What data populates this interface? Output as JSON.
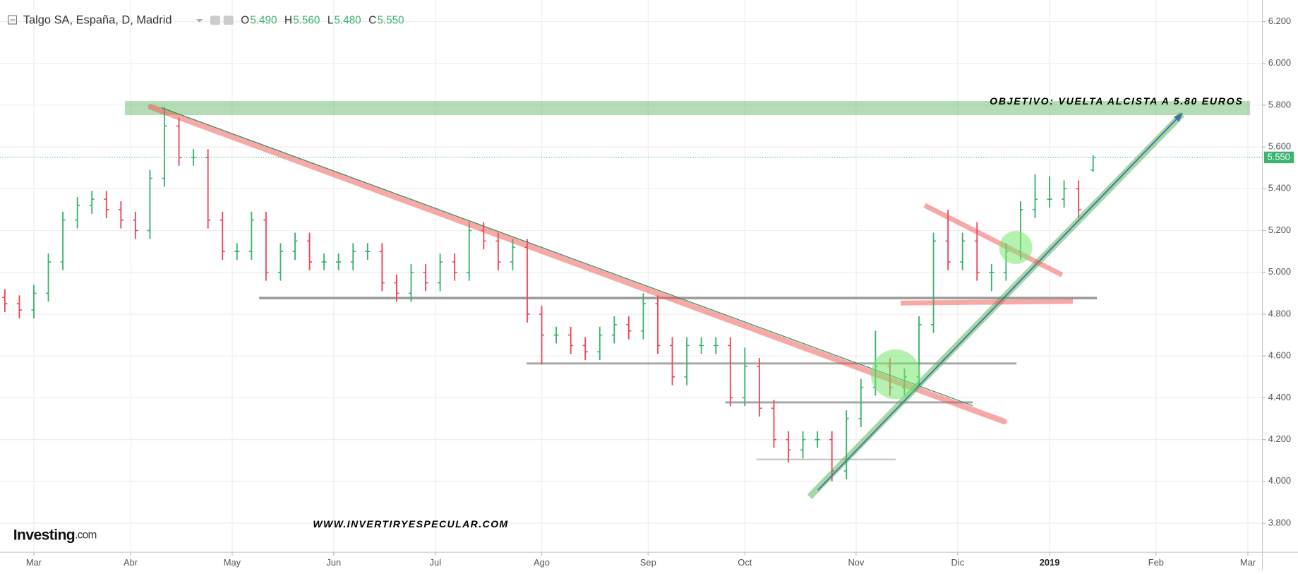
{
  "chart_data": {
    "type": "ohlc",
    "title": "Talgo SA, España, D, Madrid",
    "header_values": [
      {
        "name": "O",
        "value": "5.490"
      },
      {
        "name": "H",
        "value": "5.560"
      },
      {
        "name": "L",
        "value": "5.480"
      },
      {
        "name": "C",
        "value": "5.550"
      }
    ],
    "last_price_label": "5.550",
    "annotations": [
      "OBJETIVO: VUELTA ALCISTA A 5.80 EUROS",
      "WWW.INVERTIRYESPECULAR.COM"
    ],
    "logo": "Investing",
    "logo_suffix": ".com",
    "up_color": "#3cb371",
    "down_color": "#f0465a",
    "grid": true,
    "xlim": [
      -1,
      260
    ],
    "xticks": [
      {
        "value": 6,
        "label": "Mar"
      },
      {
        "value": 26,
        "label": "Abr"
      },
      {
        "value": 47,
        "label": "May"
      },
      {
        "value": 68,
        "label": "Jun"
      },
      {
        "value": 89,
        "label": "Jul"
      },
      {
        "value": 111,
        "label": "Ago"
      },
      {
        "value": 133,
        "label": "Sep"
      },
      {
        "value": 153,
        "label": "Oct"
      },
      {
        "value": 176,
        "label": "Nov"
      },
      {
        "value": 197,
        "label": "Dic"
      },
      {
        "value": 216,
        "label": "2019"
      },
      {
        "value": 238,
        "label": "Feb"
      },
      {
        "value": 257,
        "label": "Mar"
      }
    ],
    "ylim": [
      3.661,
      6.303
    ],
    "yticks": [
      {
        "value": 3.8,
        "label": "3.800"
      },
      {
        "value": 4.0,
        "label": "4.000"
      },
      {
        "value": 4.2,
        "label": "4.200"
      },
      {
        "value": 4.4,
        "label": "4.400"
      },
      {
        "value": 4.6,
        "label": "4.600"
      },
      {
        "value": 4.8,
        "label": "4.800"
      },
      {
        "value": 5.0,
        "label": "5.000"
      },
      {
        "value": 5.2,
        "label": "5.200"
      },
      {
        "value": 5.4,
        "label": "5.400"
      },
      {
        "value": 5.6,
        "label": "5.600"
      },
      {
        "value": 5.8,
        "label": "5.800"
      },
      {
        "value": 6.0,
        "label": "6.000"
      },
      {
        "value": 6.2,
        "label": "6.200"
      }
    ],
    "x": [
      0,
      3,
      6,
      9,
      12,
      15,
      18,
      21,
      24,
      27,
      30,
      33,
      36,
      39,
      42,
      45,
      48,
      51,
      54,
      57,
      60,
      63,
      66,
      69,
      72,
      75,
      78,
      81,
      84,
      87,
      90,
      93,
      96,
      99,
      102,
      105,
      108,
      111,
      114,
      117,
      120,
      123,
      126,
      129,
      132,
      135,
      138,
      141,
      144,
      147,
      150,
      153,
      156,
      159,
      162,
      165,
      168,
      171,
      174,
      177,
      180,
      183,
      186,
      189,
      192,
      195,
      198,
      201,
      204,
      207,
      210,
      213,
      216,
      219,
      222,
      225
    ],
    "open": [
      4.88,
      4.85,
      4.82,
      4.9,
      5.05,
      5.25,
      5.32,
      5.35,
      5.3,
      5.25,
      5.2,
      5.45,
      5.7,
      5.55,
      5.55,
      5.25,
      5.1,
      5.1,
      5.25,
      5.0,
      5.1,
      5.15,
      5.05,
      5.05,
      5.05,
      5.1,
      5.1,
      4.95,
      4.9,
      5.0,
      4.95,
      5.05,
      5.0,
      5.2,
      5.15,
      5.05,
      5.12,
      4.8,
      4.7,
      4.7,
      4.65,
      4.62,
      4.7,
      4.75,
      4.72,
      4.85,
      4.65,
      4.5,
      4.65,
      4.65,
      4.65,
      4.4,
      4.55,
      4.35,
      4.2,
      4.15,
      4.2,
      4.2,
      4.05,
      4.3,
      4.45,
      4.55,
      4.45,
      4.5,
      4.75,
      5.15,
      5.05,
      5.15,
      5.0,
      5.0,
      5.1,
      5.3,
      5.35,
      5.35,
      5.4,
      5.49
    ],
    "high": [
      4.92,
      4.89,
      4.94,
      5.09,
      5.29,
      5.36,
      5.39,
      5.39,
      5.34,
      5.29,
      5.49,
      5.79,
      5.74,
      5.59,
      5.59,
      5.29,
      5.14,
      5.29,
      5.29,
      5.14,
      5.19,
      5.19,
      5.09,
      5.09,
      5.14,
      5.14,
      5.14,
      4.99,
      5.04,
      5.04,
      5.09,
      5.09,
      5.24,
      5.24,
      5.19,
      5.16,
      5.16,
      4.84,
      4.74,
      4.74,
      4.69,
      4.74,
      4.79,
      4.79,
      4.9,
      4.89,
      4.69,
      4.69,
      4.69,
      4.69,
      4.69,
      4.64,
      4.59,
      4.39,
      4.24,
      4.24,
      4.24,
      4.24,
      4.34,
      4.49,
      4.72,
      4.59,
      4.54,
      4.79,
      5.19,
      5.3,
      5.19,
      5.24,
      5.04,
      5.14,
      5.34,
      5.47,
      5.46,
      5.44,
      5.44,
      5.56
    ],
    "low": [
      4.81,
      4.78,
      4.78,
      4.86,
      5.01,
      5.21,
      5.28,
      5.26,
      5.21,
      5.16,
      5.16,
      5.41,
      5.51,
      5.51,
      5.21,
      5.06,
      5.06,
      5.06,
      4.96,
      4.96,
      5.06,
      5.01,
      5.01,
      5.01,
      5.01,
      5.06,
      4.91,
      4.86,
      4.86,
      4.91,
      4.91,
      4.96,
      4.96,
      5.11,
      5.01,
      5.01,
      4.76,
      4.56,
      4.66,
      4.61,
      4.58,
      4.58,
      4.66,
      4.68,
      4.68,
      4.61,
      4.46,
      4.46,
      4.61,
      4.61,
      4.36,
      4.36,
      4.31,
      4.16,
      4.09,
      4.11,
      4.16,
      4.0,
      4.01,
      4.26,
      4.41,
      4.41,
      4.41,
      4.46,
      4.71,
      5.01,
      5.01,
      4.96,
      4.91,
      4.96,
      5.06,
      5.26,
      5.31,
      5.31,
      5.26,
      5.48
    ],
    "close": [
      4.85,
      4.82,
      4.9,
      5.05,
      5.25,
      5.32,
      5.35,
      5.3,
      5.25,
      5.2,
      5.45,
      5.7,
      5.55,
      5.55,
      5.25,
      5.1,
      5.1,
      5.25,
      5.0,
      5.1,
      5.15,
      5.05,
      5.05,
      5.05,
      5.1,
      5.1,
      4.95,
      4.9,
      5.0,
      4.95,
      5.05,
      5.0,
      5.2,
      5.15,
      5.05,
      5.12,
      4.8,
      4.7,
      4.7,
      4.65,
      4.62,
      4.7,
      4.75,
      4.72,
      4.85,
      4.65,
      4.5,
      4.65,
      4.65,
      4.65,
      4.4,
      4.55,
      4.35,
      4.2,
      4.15,
      4.2,
      4.2,
      4.05,
      4.3,
      4.45,
      4.55,
      4.45,
      4.5,
      4.75,
      5.15,
      5.05,
      5.15,
      5.0,
      5.0,
      5.1,
      5.3,
      5.35,
      5.35,
      5.4,
      5.3,
      5.55
    ]
  }
}
